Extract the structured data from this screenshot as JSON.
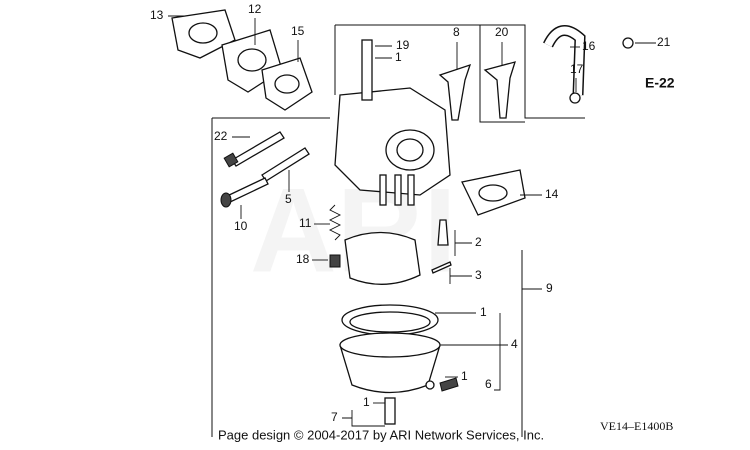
{
  "callouts": [
    "13",
    "12",
    "15",
    "19",
    "1",
    "8",
    "20",
    "16",
    "21",
    "17",
    "E-22",
    "22",
    "14",
    "5",
    "10",
    "11",
    "2",
    "18",
    "3",
    "9",
    "1",
    "4",
    "1",
    "6",
    "7",
    "1"
  ],
  "footer": "Page design © 2004-2017 by ARI Network Services, Inc.",
  "diagram_code": "VE14–E1400B"
}
